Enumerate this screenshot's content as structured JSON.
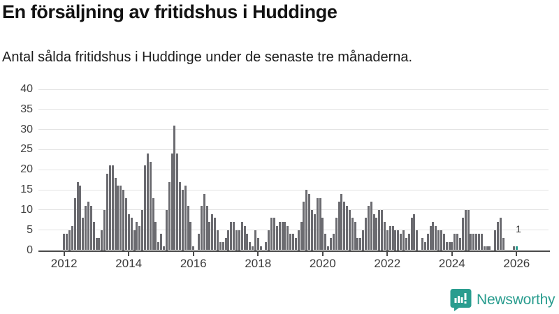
{
  "header": {
    "title": "En försäljning av fritidshus i Huddinge",
    "subtitle": "Antal sålda fritidshus i Huddinge under de senaste tre månaderna."
  },
  "chart_data": {
    "type": "bar",
    "title": "En försäljning av fritidshus i Huddinge",
    "subtitle": "Antal sålda fritidshus i Huddinge under de senaste tre månaderna.",
    "xlabel": "",
    "ylabel": "",
    "x_start": "2012-01",
    "x_interval": "month",
    "values": [
      4,
      4,
      5,
      6,
      13,
      17,
      16,
      8,
      11,
      12,
      11,
      7,
      3,
      3,
      5,
      10,
      19,
      21,
      21,
      18,
      16,
      16,
      15,
      13,
      9,
      8,
      5,
      7,
      6,
      10,
      21,
      24,
      22,
      13,
      7,
      2,
      4,
      1,
      10,
      17,
      24,
      31,
      24,
      17,
      15,
      16,
      11,
      7,
      1,
      0,
      4,
      11,
      14,
      11,
      7,
      9,
      8,
      5,
      2,
      2,
      3,
      5,
      7,
      7,
      5,
      5,
      7,
      6,
      4,
      2,
      1,
      5,
      3,
      1,
      0,
      2,
      5,
      8,
      8,
      6,
      7,
      7,
      7,
      6,
      4,
      4,
      3,
      5,
      7,
      12,
      15,
      14,
      10,
      9,
      13,
      13,
      8,
      4,
      1,
      3,
      4,
      8,
      12,
      14,
      12,
      11,
      10,
      8,
      7,
      3,
      3,
      5,
      8,
      11,
      12,
      9,
      8,
      10,
      10,
      7,
      5,
      6,
      6,
      5,
      5,
      4,
      5,
      3,
      4,
      8,
      9,
      5,
      0,
      3,
      2,
      4,
      6,
      7,
      6,
      5,
      5,
      4,
      2,
      2,
      2,
      4,
      4,
      3,
      8,
      10,
      10,
      4,
      4,
      4,
      4,
      4,
      1,
      1,
      1,
      0,
      5,
      7,
      8,
      3,
      0,
      0,
      0,
      1,
      1
    ],
    "x_tick_labels": [
      "2012",
      "2014",
      "2016",
      "2018",
      "2020",
      "2022",
      "2024",
      "2026"
    ],
    "x_tick_years": [
      2012,
      2014,
      2016,
      2018,
      2020,
      2022,
      2024,
      2026
    ],
    "y_ticks": [
      0,
      5,
      10,
      15,
      20,
      25,
      30,
      35,
      40
    ],
    "ylim": [
      0,
      40
    ],
    "grid": true,
    "legend": "none",
    "bar_color": "#6b6b70",
    "highlight_last_bar": true,
    "highlight_color": "#2a9d8f",
    "last_value_label": "1"
  },
  "branding": {
    "name": "Newsworthy",
    "color": "#2a9d8f",
    "icon": "newsworthy-bars-logo"
  }
}
